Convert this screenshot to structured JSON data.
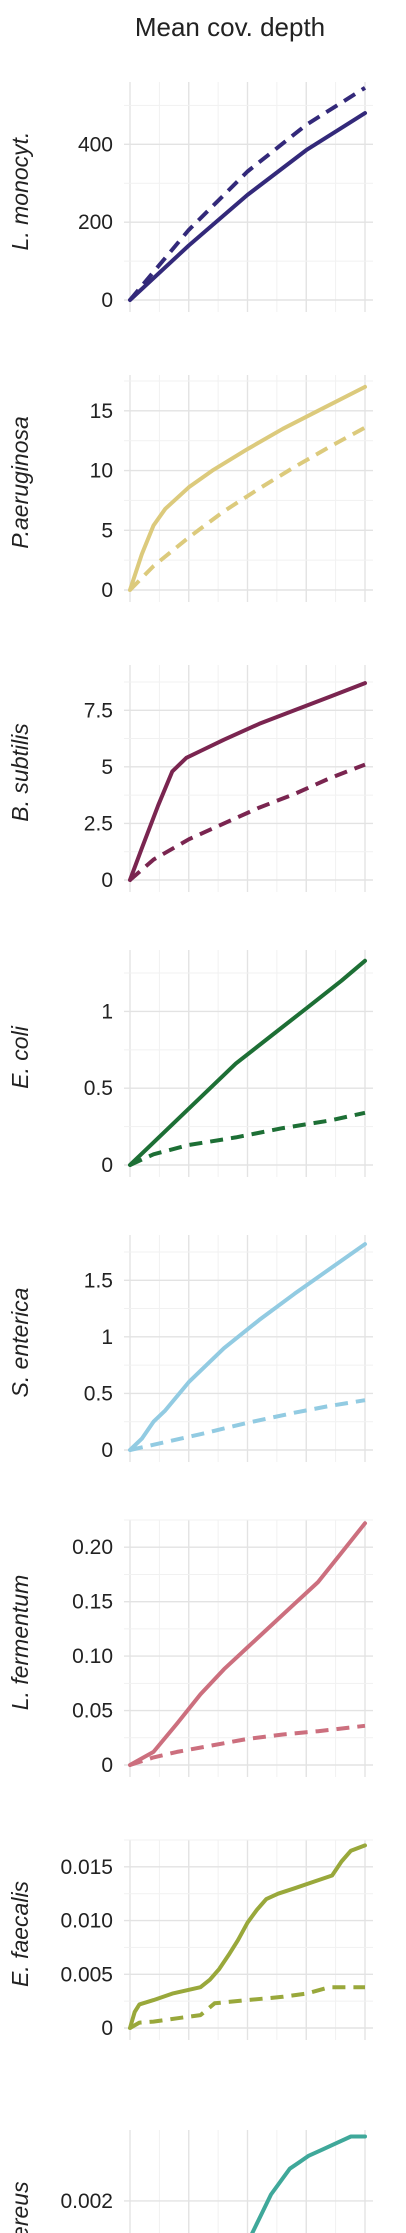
{
  "figure_title": "Mean cov. depth",
  "chart_data": [
    {
      "type": "line",
      "ylabel": "L. monocyt.",
      "ylim": [
        0,
        560
      ],
      "yticks": [
        0,
        200,
        400
      ],
      "ytick_labels": [
        "0",
        "200",
        "400"
      ],
      "xlim": [
        0,
        1
      ],
      "grid": true,
      "color": "#33297a",
      "series": [
        {
          "style": "solid",
          "x": [
            0,
            0.25,
            0.5,
            0.75,
            1
          ],
          "y": [
            0,
            140,
            270,
            385,
            480
          ]
        },
        {
          "style": "dashed",
          "x": [
            0,
            0.25,
            0.5,
            0.75,
            1
          ],
          "y": [
            0,
            180,
            330,
            450,
            545
          ]
        }
      ]
    },
    {
      "type": "line",
      "ylabel": "P.aeruginosa",
      "ylim": [
        0,
        18
      ],
      "yticks": [
        0,
        5,
        10,
        15
      ],
      "ytick_labels": [
        "0",
        "5",
        "10",
        "15"
      ],
      "xlim": [
        0,
        1
      ],
      "grid": true,
      "color": "#dcca7c",
      "series": [
        {
          "style": "solid",
          "x": [
            0,
            0.05,
            0.1,
            0.15,
            0.25,
            0.35,
            0.5,
            0.65,
            0.8,
            1
          ],
          "y": [
            0,
            3,
            5.4,
            6.8,
            8.6,
            10,
            11.8,
            13.5,
            15,
            17
          ]
        },
        {
          "style": "dashed",
          "x": [
            0,
            0.1,
            0.25,
            0.4,
            0.55,
            0.7,
            0.85,
            1
          ],
          "y": [
            0,
            2,
            4.4,
            6.6,
            8.5,
            10.3,
            12,
            13.6
          ]
        }
      ]
    },
    {
      "type": "line",
      "ylabel": "B. subtilis",
      "ylim": [
        0,
        9.5
      ],
      "yticks": [
        0,
        2.5,
        5,
        7.5
      ],
      "ytick_labels": [
        "0",
        "2.5",
        "5",
        "7.5"
      ],
      "xlim": [
        0,
        1
      ],
      "grid": true,
      "color": "#7a2550",
      "series": [
        {
          "style": "solid",
          "x": [
            0,
            0.05,
            0.12,
            0.18,
            0.24,
            0.3,
            0.4,
            0.55,
            0.7,
            0.85,
            1
          ],
          "y": [
            0,
            1.4,
            3.3,
            4.8,
            5.4,
            5.7,
            6.2,
            6.9,
            7.5,
            8.1,
            8.7
          ]
        },
        {
          "style": "dashed",
          "x": [
            0,
            0.1,
            0.25,
            0.4,
            0.55,
            0.7,
            0.85,
            1
          ],
          "y": [
            0,
            0.9,
            1.8,
            2.5,
            3.2,
            3.8,
            4.5,
            5.1
          ]
        }
      ]
    },
    {
      "type": "line",
      "ylabel": "E. coli",
      "ylim": [
        0,
        1.4
      ],
      "yticks": [
        0,
        0.5,
        1
      ],
      "ytick_labels": [
        "0",
        "0.5",
        "1"
      ],
      "xlim": [
        0,
        1
      ],
      "grid": true,
      "color": "#1d6f35",
      "series": [
        {
          "style": "solid",
          "x": [
            0,
            0.15,
            0.3,
            0.45,
            0.6,
            0.75,
            0.9,
            1
          ],
          "y": [
            0,
            0.22,
            0.44,
            0.66,
            0.84,
            1.02,
            1.2,
            1.33
          ]
        },
        {
          "style": "dashed",
          "x": [
            0,
            0.1,
            0.25,
            0.45,
            0.65,
            0.85,
            1
          ],
          "y": [
            0,
            0.07,
            0.13,
            0.18,
            0.24,
            0.29,
            0.34
          ]
        }
      ]
    },
    {
      "type": "line",
      "ylabel": "S. enterica",
      "ylim": [
        0,
        1.9
      ],
      "yticks": [
        0,
        0.5,
        1,
        1.5
      ],
      "ytick_labels": [
        "0",
        "0.5",
        "1",
        "1.5"
      ],
      "xlim": [
        0,
        1
      ],
      "grid": true,
      "color": "#92cbe2",
      "series": [
        {
          "style": "solid",
          "x": [
            0,
            0.05,
            0.1,
            0.15,
            0.25,
            0.4,
            0.55,
            0.7,
            0.85,
            1
          ],
          "y": [
            0,
            0.1,
            0.25,
            0.35,
            0.6,
            0.9,
            1.15,
            1.38,
            1.6,
            1.82
          ]
        },
        {
          "style": "dashed",
          "x": [
            0,
            0.15,
            0.3,
            0.5,
            0.7,
            0.85,
            1
          ],
          "y": [
            0,
            0.07,
            0.14,
            0.24,
            0.33,
            0.39,
            0.44
          ]
        }
      ]
    },
    {
      "type": "line",
      "ylabel": "L. fermentum",
      "ylim": [
        0,
        0.225
      ],
      "yticks": [
        0,
        0.05,
        0.1,
        0.15,
        0.2
      ],
      "ytick_labels": [
        "0",
        "0.05",
        "0.10",
        "0.15",
        "0.20"
      ],
      "xlim": [
        0,
        1
      ],
      "grid": true,
      "color": "#cc6f7e",
      "series": [
        {
          "style": "solid",
          "x": [
            0,
            0.1,
            0.2,
            0.3,
            0.4,
            0.5,
            0.6,
            0.7,
            0.8,
            0.9,
            1
          ],
          "y": [
            0,
            0.012,
            0.038,
            0.065,
            0.088,
            0.108,
            0.128,
            0.148,
            0.168,
            0.195,
            0.222
          ]
        },
        {
          "style": "dashed",
          "x": [
            0,
            0.1,
            0.2,
            0.35,
            0.5,
            0.65,
            0.8,
            1
          ],
          "y": [
            0,
            0.007,
            0.012,
            0.018,
            0.024,
            0.028,
            0.031,
            0.036
          ]
        }
      ]
    },
    {
      "type": "line",
      "ylabel": "E. faecalis",
      "ylim": [
        0,
        0.0175
      ],
      "yticks": [
        0,
        0.005,
        0.01,
        0.015
      ],
      "ytick_labels": [
        "0",
        "0.005",
        "0.010",
        "0.015"
      ],
      "xlim": [
        0,
        1
      ],
      "grid": true,
      "color": "#99a83b",
      "series": [
        {
          "style": "solid",
          "x": [
            0,
            0.02,
            0.04,
            0.1,
            0.18,
            0.3,
            0.34,
            0.38,
            0.42,
            0.46,
            0.5,
            0.54,
            0.58,
            0.63,
            0.7,
            0.78,
            0.86,
            0.9,
            0.94,
            1
          ],
          "y": [
            0,
            0.0015,
            0.0022,
            0.0026,
            0.0032,
            0.0038,
            0.0045,
            0.0055,
            0.0068,
            0.0082,
            0.0098,
            0.011,
            0.012,
            0.0125,
            0.013,
            0.0136,
            0.0142,
            0.0155,
            0.0165,
            0.017
          ]
        },
        {
          "style": "dashed",
          "x": [
            0,
            0.04,
            0.1,
            0.2,
            0.3,
            0.36,
            0.5,
            0.65,
            0.75,
            0.85,
            1
          ],
          "y": [
            0,
            0.0005,
            0.0006,
            0.0009,
            0.0012,
            0.0023,
            0.0026,
            0.0029,
            0.0032,
            0.0038,
            0.0038
          ]
        }
      ]
    },
    {
      "type": "line",
      "ylabel": "B. cereus",
      "ylim": [
        0,
        0.0031
      ],
      "yticks": [
        0.002
      ],
      "ytick_labels": [
        "0.002"
      ],
      "xlim": [
        0,
        1
      ],
      "grid": true,
      "color": "#3fa89a",
      "series": [
        {
          "style": "solid",
          "x": [
            0.5,
            0.52,
            0.56,
            0.6,
            0.64,
            0.68,
            0.72,
            0.76,
            0.82,
            0.88,
            0.94,
            1
          ],
          "y": [
            0.0012,
            0.0015,
            0.0018,
            0.0021,
            0.0023,
            0.0025,
            0.0026,
            0.0027,
            0.0028,
            0.0029,
            0.003,
            0.003
          ]
        }
      ]
    }
  ]
}
